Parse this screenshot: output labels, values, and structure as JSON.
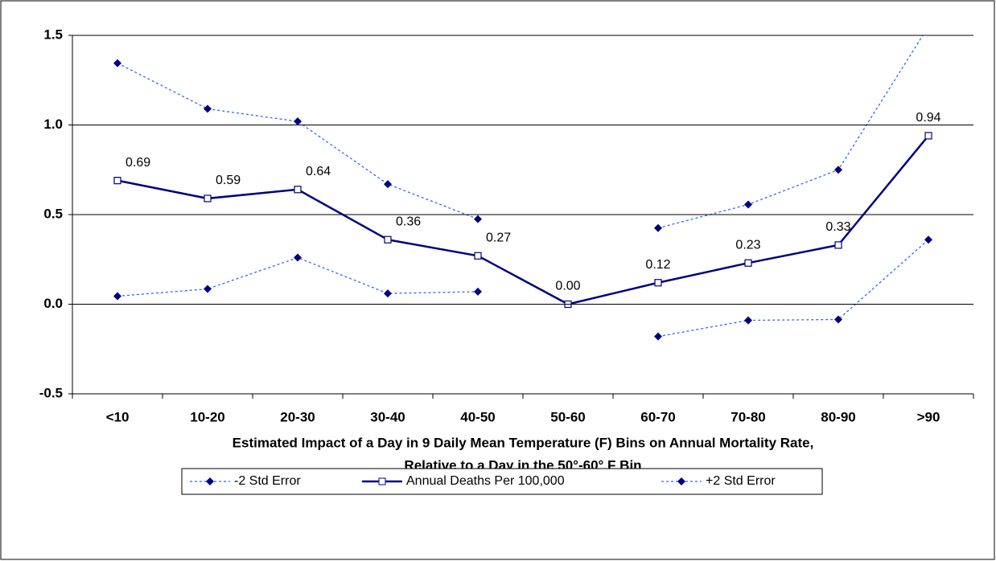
{
  "chart_data": {
    "type": "line",
    "x_label": [
      "Estimated Impact of a Day in 9 Daily Mean Temperature (F) Bins on Annual Mortality Rate,",
      "Relative to a Day in the 50°-60° F Bin"
    ],
    "categories": [
      "<10",
      "10-20",
      "20-30",
      "30-40",
      "40-50",
      "50-60",
      "60-70",
      "70-80",
      "80-90",
      ">90"
    ],
    "series": [
      {
        "name": "-2 Std Error",
        "color": "#3366ff",
        "marker_color": "#000080",
        "values": [
          0.045,
          0.085,
          0.26,
          0.06,
          0.07,
          null,
          -0.18,
          -0.09,
          -0.085,
          0.36
        ]
      },
      {
        "name": "Annual Deaths Per 100,000",
        "color": "#000080",
        "values": [
          0.69,
          0.59,
          0.64,
          0.36,
          0.27,
          0.0,
          0.12,
          0.23,
          0.33,
          0.94
        ],
        "value_labels": [
          "0.69",
          "0.59",
          "0.64",
          "0.36",
          "0.27",
          "0.00",
          "0.12",
          "0.23",
          "0.33",
          "0.94"
        ]
      },
      {
        "name": "+2 Std Error",
        "color": "#3366ff",
        "marker_color": "#000080",
        "values": [
          1.345,
          1.09,
          1.02,
          0.67,
          0.475,
          null,
          0.425,
          0.556,
          0.75,
          1.55
        ]
      }
    ],
    "ylim": [
      -0.5,
      1.5
    ],
    "yticks": [
      {
        "value": -0.5,
        "label": "-0.5"
      },
      {
        "value": 0,
        "label": "0.0"
      },
      {
        "value": 0.5,
        "label": "0.5"
      },
      {
        "value": 1,
        "label": "1.0"
      },
      {
        "value": 1.5,
        "label": "1.5"
      }
    ],
    "grid": true,
    "legend": "bottom"
  }
}
